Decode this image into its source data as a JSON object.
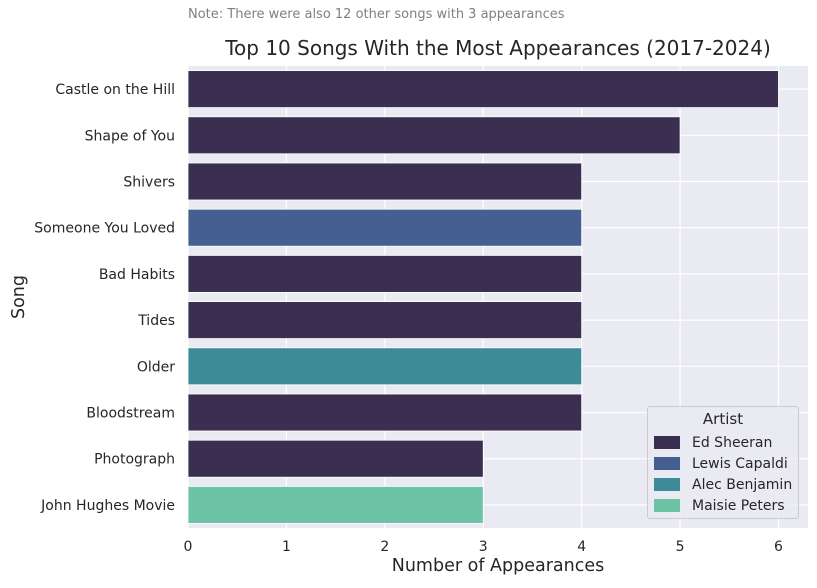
{
  "note": "Note: There were also 12 other songs with 3 appearances",
  "chart_data": {
    "type": "bar",
    "orientation": "horizontal",
    "title": "Top 10 Songs With the Most Appearances (2017-2024)",
    "xlabel": "Number of Appearances",
    "ylabel": "Song",
    "xlim": [
      0,
      6.3
    ],
    "xticks": [
      "0",
      "1",
      "2",
      "3",
      "4",
      "5",
      "6"
    ],
    "grid": true,
    "legend_placement": "lower-right",
    "legend_title": "Artist",
    "categories": [
      "Castle on the Hill",
      "Shape of You",
      "Shivers",
      "Someone You Loved",
      "Bad Habits",
      "Tides",
      "Older",
      "Bloodstream",
      "Photograph",
      "John Hughes Movie"
    ],
    "values": [
      6,
      5,
      4,
      4,
      4,
      4,
      4,
      4,
      3,
      3
    ],
    "artists": [
      "Ed Sheeran",
      "Ed Sheeran",
      "Ed Sheeran",
      "Lewis Capaldi",
      "Ed Sheeran",
      "Ed Sheeran",
      "Alec Benjamin",
      "Ed Sheeran",
      "Ed Sheeran",
      "Maisie Peters"
    ],
    "series": [
      {
        "name": "Ed Sheeran",
        "color": "#3b2f51"
      },
      {
        "name": "Lewis Capaldi",
        "color": "#455f91"
      },
      {
        "name": "Alec Benjamin",
        "color": "#3d8b99"
      },
      {
        "name": "Maisie Peters",
        "color": "#6dc3a6"
      }
    ]
  }
}
